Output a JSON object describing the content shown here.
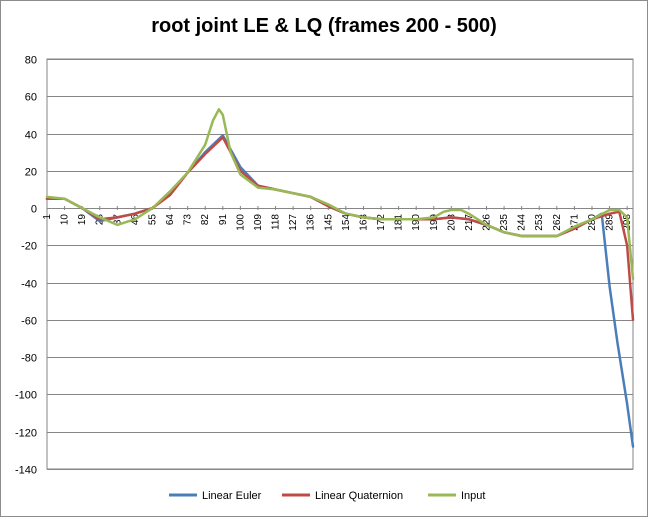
{
  "chart_data": {
    "type": "line",
    "title": "root joint LE & LQ (frames 200 - 500)",
    "xlabel": "",
    "ylabel": "",
    "ylim": [
      -140,
      80
    ],
    "ytick_step": 20,
    "xlim": [
      1,
      301
    ],
    "xtick_labels": [
      "1",
      "10",
      "19",
      "28",
      "37",
      "46",
      "55",
      "64",
      "73",
      "82",
      "91",
      "100",
      "109",
      "118",
      "127",
      "136",
      "145",
      "154",
      "163",
      "172",
      "181",
      "190",
      "199",
      "208",
      "217",
      "226",
      "235",
      "244",
      "253",
      "262",
      "271",
      "280",
      "289",
      "298"
    ],
    "grid": "horizontal",
    "legend_position": "bottom",
    "series": [
      {
        "name": "Linear Euler",
        "color": "#4a7ebb",
        "x": [
          1,
          10,
          19,
          28,
          37,
          46,
          55,
          64,
          73,
          82,
          91,
          100,
          109,
          118,
          127,
          136,
          145,
          154,
          163,
          172,
          181,
          190,
          199,
          208,
          217,
          226,
          235,
          244,
          253,
          262,
          271,
          280,
          285,
          289,
          293,
          298,
          301
        ],
        "y": [
          5,
          5,
          0,
          -7,
          -5,
          -3,
          0,
          8,
          19,
          30,
          39,
          22,
          12,
          10,
          8,
          6,
          1,
          -3,
          -5,
          -6,
          -6,
          -6,
          -6,
          -5,
          -6,
          -9,
          -13,
          -15,
          -15,
          -15,
          -11,
          -6,
          -3,
          -42,
          -72,
          -105,
          -128
        ]
      },
      {
        "name": "Linear Quaternion",
        "color": "#be4b48",
        "x": [
          1,
          10,
          19,
          28,
          37,
          46,
          55,
          64,
          73,
          82,
          91,
          100,
          109,
          118,
          127,
          136,
          145,
          154,
          163,
          172,
          181,
          190,
          199,
          208,
          217,
          226,
          235,
          244,
          253,
          262,
          271,
          280,
          289,
          294,
          298,
          301
        ],
        "y": [
          5,
          5,
          0,
          -6,
          -5,
          -3,
          0,
          7,
          19,
          29,
          38,
          20,
          12,
          10,
          8,
          6,
          1,
          -3,
          -5,
          -6,
          -6,
          -6,
          -6,
          -5,
          -6,
          -9,
          -13,
          -15,
          -15,
          -15,
          -11,
          -6,
          -3,
          -2,
          -20,
          -60
        ]
      },
      {
        "name": "Input",
        "color": "#98b954",
        "x": [
          1,
          10,
          19,
          28,
          37,
          46,
          55,
          64,
          73,
          82,
          86,
          89,
          91,
          95,
          100,
          109,
          118,
          127,
          136,
          145,
          154,
          163,
          172,
          181,
          190,
          199,
          204,
          208,
          213,
          217,
          226,
          235,
          244,
          253,
          262,
          271,
          280,
          289,
          294,
          298,
          301
        ],
        "y": [
          6,
          5,
          0,
          -5,
          -9,
          -6,
          0,
          9,
          19,
          34,
          47,
          53,
          50,
          30,
          18,
          11,
          10,
          8,
          6,
          2,
          -3,
          -5,
          -6,
          -6,
          -6,
          -5,
          -2,
          -1,
          -1,
          -3,
          -9,
          -13,
          -15,
          -15,
          -15,
          -10,
          -6,
          -1,
          -1,
          -5,
          -38
        ]
      }
    ]
  }
}
